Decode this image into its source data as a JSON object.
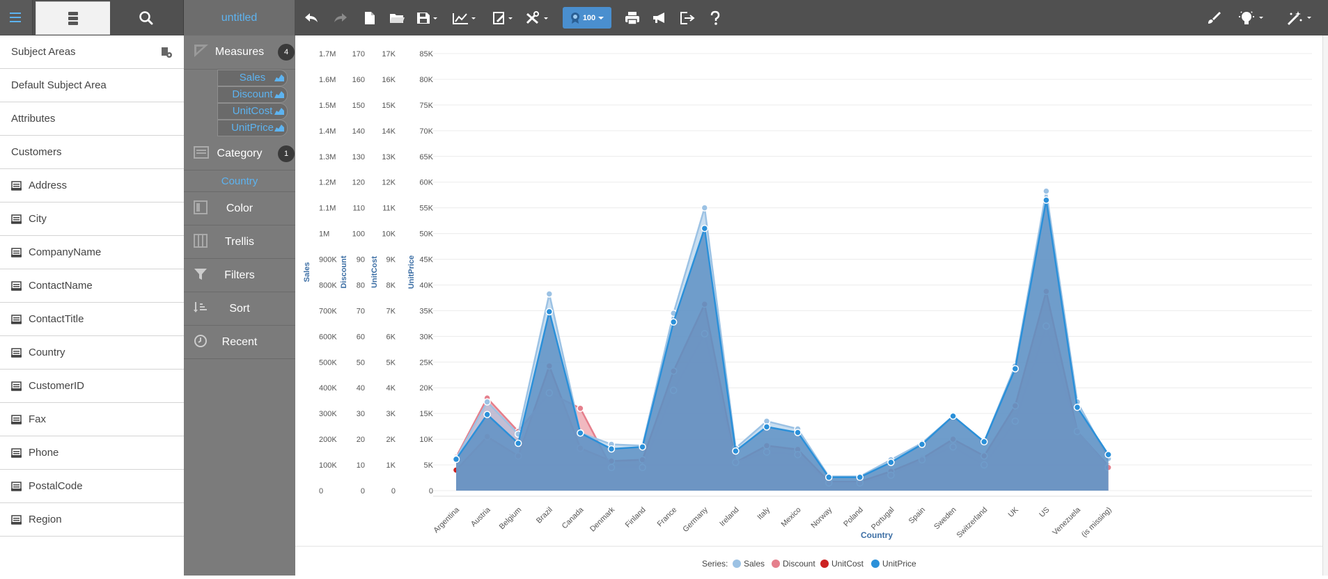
{
  "toolbar": {
    "title": "untitled",
    "badge": "100",
    "icons": [
      "menu-icon",
      "database-icon",
      "search-icon",
      "undo-icon",
      "redo-icon",
      "new-file-icon",
      "open-folder-icon",
      "save-icon",
      "chart-type-icon",
      "edit-chart-icon",
      "tools-icon",
      "badge-icon",
      "print-icon",
      "announce-icon",
      "export-icon",
      "help-icon",
      "brush-icon",
      "lightbulb-icon",
      "magic-wand-icon"
    ]
  },
  "left_panel": {
    "header": "Subject Areas",
    "default_area": "Default Subject Area",
    "attributes_label": "Attributes",
    "group": "Customers",
    "fields": [
      "Address",
      "City",
      "CompanyName",
      "ContactName",
      "ContactTitle",
      "Country",
      "CustomerID",
      "Fax",
      "Phone",
      "PostalCode",
      "Region"
    ]
  },
  "mid_panel": {
    "measures": {
      "label": "Measures",
      "count": "4",
      "items": [
        "Sales",
        "Discount",
        "UnitCost",
        "UnitPrice"
      ]
    },
    "category": {
      "label": "Category",
      "count": "1",
      "items": [
        "Country"
      ]
    },
    "color": "Color",
    "trellis": "Trellis",
    "filters": "Filters",
    "sort": "Sort",
    "recent": "Recent"
  },
  "chart_data": {
    "type": "area",
    "categories": [
      "Argentina",
      "Austria",
      "Belgium",
      "Brazil",
      "Canada",
      "Denmark",
      "Finland",
      "France",
      "Germany",
      "Ireland",
      "Italy",
      "Mexico",
      "Norway",
      "Poland",
      "Portugal",
      "Spain",
      "Sweden",
      "Switzerland",
      "UK",
      "US",
      "Venezuela",
      "(is missing)"
    ],
    "xlabel": "Country",
    "legend_title": "Series:",
    "legend_position": "bottom",
    "grid": true,
    "axes": [
      {
        "label": "Sales",
        "ticks": [
          "0",
          "100K",
          "200K",
          "300K",
          "400K",
          "500K",
          "600K",
          "700K",
          "800K",
          "900K",
          "1M",
          "1.1M",
          "1.2M",
          "1.3M",
          "1.4M",
          "1.5M",
          "1.6M",
          "1.7M"
        ],
        "ylim": [
          0,
          1700000
        ]
      },
      {
        "label": "Discount",
        "ticks": [
          "0",
          "10",
          "20",
          "30",
          "40",
          "50",
          "60",
          "70",
          "80",
          "90",
          "100",
          "110",
          "120",
          "130",
          "140",
          "150",
          "160",
          "170"
        ],
        "ylim": [
          0,
          170
        ]
      },
      {
        "label": "UnitCost",
        "ticks": [
          "0",
          "1K",
          "2K",
          "3K",
          "4K",
          "5K",
          "6K",
          "7K",
          "8K",
          "9K",
          "10K",
          "11K",
          "12K",
          "13K",
          "14K",
          "15K",
          "16K",
          "17K"
        ],
        "ylim": [
          0,
          17000
        ]
      },
      {
        "label": "UnitPrice",
        "ticks": [
          "0",
          "5K",
          "10K",
          "15K",
          "20K",
          "25K",
          "30K",
          "35K",
          "40K",
          "45K",
          "50K",
          "55K",
          "60K",
          "65K",
          "70K",
          "75K",
          "80K",
          "85K"
        ],
        "ylim": [
          0,
          85000
        ]
      }
    ],
    "series": [
      {
        "name": "UnitCost",
        "color": "#cc2222",
        "axis": 2,
        "values": [
          800,
          2100,
          1350,
          4850,
          1650,
          1150,
          1200,
          4650,
          7250,
          1100,
          1750,
          1600,
          350,
          350,
          750,
          1250,
          2000,
          1350,
          3300,
          7750,
          2300,
          950
        ]
      },
      {
        "name": "Discount",
        "color": "#e57f8c",
        "axis": 1,
        "values": [
          13,
          36,
          23,
          38,
          32,
          9,
          9,
          39,
          61,
          11,
          15,
          14,
          3,
          3,
          6,
          12,
          17,
          10,
          27,
          64,
          23,
          9
        ]
      },
      {
        "name": "Sales",
        "color": "#9cc2e4",
        "axis": 0,
        "values": [
          125000,
          345000,
          220000,
          765000,
          225000,
          180000,
          175000,
          690000,
          1100000,
          165000,
          270000,
          240000,
          55000,
          55000,
          120000,
          185000,
          290000,
          190000,
          485000,
          1165000,
          345000,
          125000
        ]
      },
      {
        "name": "UnitPrice",
        "color": "#2b90d9",
        "axis": 3,
        "values": [
          6100,
          14800,
          9200,
          34800,
          11200,
          8100,
          8500,
          32800,
          51000,
          7700,
          12400,
          11300,
          2600,
          2600,
          5500,
          9000,
          14500,
          9500,
          23700,
          56500,
          16200,
          7000
        ]
      }
    ]
  }
}
